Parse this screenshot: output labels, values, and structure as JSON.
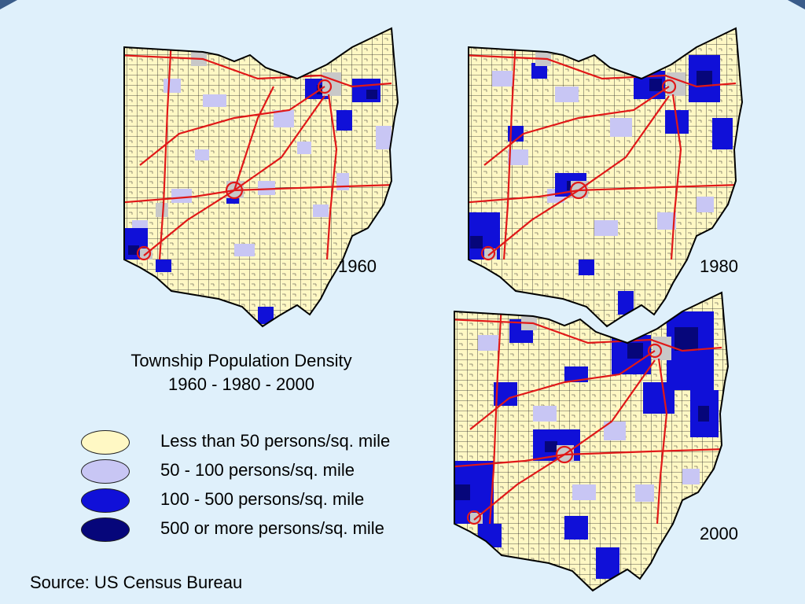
{
  "title": {
    "line1": "Township Population Density",
    "line2": "1960 - 1980 - 2000"
  },
  "maps": [
    {
      "year": "1960"
    },
    {
      "year": "1980"
    },
    {
      "year": "2000"
    }
  ],
  "legend": [
    {
      "label": "Less than 50 persons/sq. mile",
      "color": "#fff8c4"
    },
    {
      "label": "50 - 100 persons/sq. mile",
      "color": "#c8c6f4"
    },
    {
      "label": "100 - 500 persons/sq. mile",
      "color": "#1010d8"
    },
    {
      "label": "500 or more persons/sq. mile",
      "color": "#06067a"
    }
  ],
  "source": "Source: US Census Bureau",
  "colors": {
    "background": "#dff0fb",
    "highway": "#e01818",
    "urban": "#c8c8c8",
    "border": "#000000"
  }
}
